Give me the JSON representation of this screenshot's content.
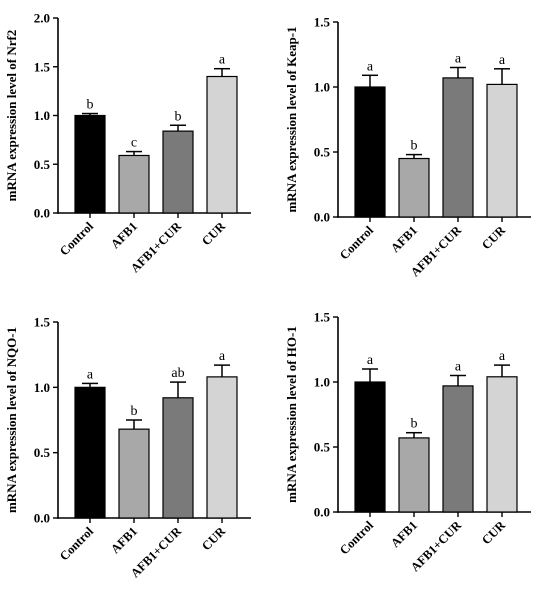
{
  "chart_data": [
    {
      "type": "bar",
      "ylabel": "mRNA expression level of Nrf2",
      "ylim": [
        0,
        2.0
      ],
      "yticks": [
        "0.0",
        "0.5",
        "1.0",
        "1.5",
        "2.0"
      ],
      "categories": [
        "Control",
        "AFB1",
        "AFB1+CUR",
        "CUR"
      ],
      "values": [
        1.0,
        0.59,
        0.84,
        1.4
      ],
      "errors": [
        0.02,
        0.04,
        0.06,
        0.08
      ],
      "significance": [
        "b",
        "c",
        "b",
        "a"
      ],
      "colors": [
        "#000000",
        "#a8a8a8",
        "#7a7a7a",
        "#d4d4d4"
      ]
    },
    {
      "type": "bar",
      "ylabel": "mRNA expression level of Keap-1",
      "ylim": [
        0,
        1.5
      ],
      "yticks": [
        "0.0",
        "0.5",
        "1.0",
        "1.5"
      ],
      "categories": [
        "Control",
        "AFB1",
        "AFB1+CUR",
        "CUR"
      ],
      "values": [
        1.0,
        0.45,
        1.07,
        1.02
      ],
      "errors": [
        0.09,
        0.03,
        0.08,
        0.12
      ],
      "significance": [
        "a",
        "b",
        "a",
        "a"
      ],
      "colors": [
        "#000000",
        "#a8a8a8",
        "#7a7a7a",
        "#d4d4d4"
      ]
    },
    {
      "type": "bar",
      "ylabel": "mRNA expression level of NQO-1",
      "ylim": [
        0,
        1.5
      ],
      "yticks": [
        "0.0",
        "0.5",
        "1.0",
        "1.5"
      ],
      "categories": [
        "Control",
        "AFB1",
        "AFB1+CUR",
        "CUR"
      ],
      "values": [
        1.0,
        0.68,
        0.92,
        1.08
      ],
      "errors": [
        0.03,
        0.07,
        0.12,
        0.09
      ],
      "significance": [
        "a",
        "b",
        "ab",
        "a"
      ],
      "colors": [
        "#000000",
        "#a8a8a8",
        "#7a7a7a",
        "#d4d4d4"
      ]
    },
    {
      "type": "bar",
      "ylabel": "mRNA expression level of HO-1",
      "ylim": [
        0,
        1.5
      ],
      "yticks": [
        "0.0",
        "0.5",
        "1.0",
        "1.5"
      ],
      "categories": [
        "Control",
        "AFB1",
        "AFB1+CUR",
        "CUR"
      ],
      "values": [
        1.0,
        0.57,
        0.97,
        1.04
      ],
      "errors": [
        0.1,
        0.04,
        0.08,
        0.09
      ],
      "significance": [
        "a",
        "b",
        "a",
        "a"
      ],
      "colors": [
        "#000000",
        "#a8a8a8",
        "#7a7a7a",
        "#d4d4d4"
      ]
    }
  ]
}
